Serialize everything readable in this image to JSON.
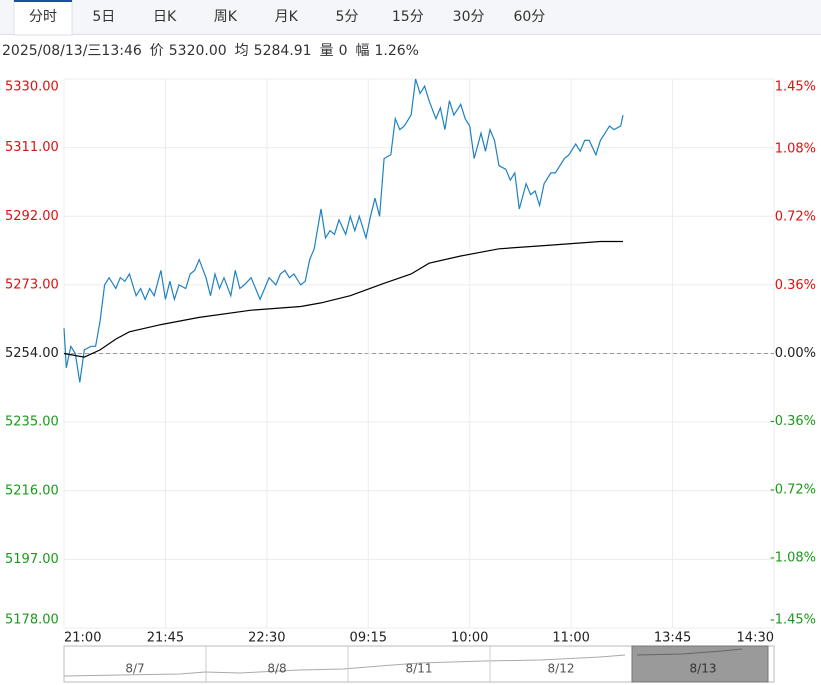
{
  "tabs": [
    "分时",
    "5日",
    "日K",
    "周K",
    "月K",
    "5分",
    "15分",
    "30分",
    "60分"
  ],
  "active_tab": 0,
  "info": {
    "time": "2025/08/13/三13:46",
    "items": [
      {
        "label": "价",
        "value": "5320.00"
      },
      {
        "label": "均",
        "value": "5284.91"
      },
      {
        "label": "量",
        "value": "0"
      },
      {
        "label": "幅",
        "value": "1.26%"
      }
    ]
  },
  "chart_data": {
    "type": "line",
    "xlim": [
      0,
      315
    ],
    "xticks": [
      {
        "value": 0,
        "label": "21:00"
      },
      {
        "value": 45,
        "label": "21:45"
      },
      {
        "value": 90,
        "label": "22:30"
      },
      {
        "value": 135,
        "label": "09:15"
      },
      {
        "value": 180,
        "label": "10:00"
      },
      {
        "value": 225,
        "label": "11:00"
      },
      {
        "value": 270,
        "label": "13:45"
      },
      {
        "value": 315,
        "label": "14:30"
      }
    ],
    "ylim": [
      5178,
      5330
    ],
    "yticks": [
      {
        "value": 5330,
        "label": "5330.00"
      },
      {
        "value": 5311,
        "label": "5311.00"
      },
      {
        "value": 5292,
        "label": "5292.00"
      },
      {
        "value": 5273,
        "label": "5273.00"
      },
      {
        "value": 5254,
        "label": "5254.00"
      },
      {
        "value": 5235,
        "label": "5235.00"
      },
      {
        "value": 5216,
        "label": "5216.00"
      },
      {
        "value": 5197,
        "label": "5197.00"
      },
      {
        "value": 5178,
        "label": "5178.00"
      }
    ],
    "y2lim": [
      -1.45,
      1.45
    ],
    "y2ticks": [
      {
        "value": 1.45,
        "label": "1.45%"
      },
      {
        "value": 1.08,
        "label": "1.08%"
      },
      {
        "value": 0.72,
        "label": "0.72%"
      },
      {
        "value": 0.36,
        "label": "0.36%"
      },
      {
        "value": 0,
        "label": "0.00%"
      },
      {
        "value": -0.36,
        "label": "-0.36%"
      },
      {
        "value": -0.72,
        "label": "-0.72%"
      },
      {
        "value": -1.08,
        "label": "-1.08%"
      },
      {
        "value": -1.45,
        "label": "-1.45%"
      }
    ],
    "up_color": "#e01010",
    "down_color": "#1a9a1a",
    "flat_color": "#222222",
    "grid": true,
    "series": [
      {
        "color": "#1f82c0",
        "x": [
          0,
          1,
          3,
          5,
          7,
          9,
          12,
          14,
          16,
          18,
          20,
          23,
          25,
          27,
          29,
          32,
          34,
          36,
          38,
          40,
          43,
          45,
          47,
          49,
          51,
          54,
          56,
          58,
          60,
          63,
          65,
          67,
          69,
          71,
          74,
          76,
          78,
          80,
          83,
          85,
          87,
          89,
          91,
          94,
          96,
          98,
          100,
          102,
          105,
          107,
          109,
          111,
          114,
          116,
          118,
          120,
          122,
          125,
          127,
          129,
          131,
          134,
          136,
          138,
          140,
          142,
          145,
          147,
          149,
          151,
          154,
          156,
          158,
          160,
          162,
          165,
          167,
          169,
          171,
          173,
          176,
          178,
          180,
          182,
          185,
          187,
          189,
          191,
          193,
          196,
          198,
          200,
          202,
          205,
          207,
          209,
          211,
          213,
          216,
          218,
          220,
          222,
          224,
          227,
          229,
          231,
          233,
          236,
          238,
          240,
          242,
          244,
          247,
          248
        ],
        "values": [
          5261,
          5250,
          5256,
          5254,
          5246,
          5255,
          5256,
          5256,
          5263,
          5273,
          5275,
          5272,
          5275,
          5274,
          5276,
          5270,
          5272,
          5269,
          5272,
          5270,
          5277,
          5269,
          5274,
          5269,
          5273,
          5272,
          5276,
          5277,
          5280,
          5275,
          5270,
          5276,
          5272,
          5275,
          5270,
          5277,
          5272,
          5273,
          5275,
          5272,
          5269,
          5272,
          5275,
          5273,
          5276,
          5277,
          5275,
          5276,
          5273,
          5274,
          5280,
          5283,
          5294,
          5286,
          5288,
          5287,
          5291,
          5287,
          5292,
          5288,
          5292,
          5286,
          5292,
          5297,
          5292,
          5308,
          5309,
          5319,
          5316,
          5317,
          5320,
          5330,
          5326,
          5328,
          5324,
          5319,
          5322,
          5316,
          5324,
          5320,
          5323,
          5319,
          5317,
          5308,
          5315,
          5310,
          5316,
          5313,
          5306,
          5305,
          5302,
          5304,
          5294,
          5301,
          5298,
          5299,
          5295,
          5301,
          5304,
          5304,
          5306,
          5308,
          5309,
          5312,
          5310,
          5313,
          5313,
          5309,
          5313,
          5315,
          5317,
          5316,
          5317,
          5320
        ]
      },
      {
        "color": "#000000",
        "x": [
          0,
          9,
          16,
          23,
          29,
          43,
          60,
          83,
          105,
          114,
          127,
          140,
          154,
          162,
          176,
          193,
          216,
          238,
          248
        ],
        "values": [
          5254,
          5253,
          5255,
          5258,
          5260,
          5262,
          5264,
          5266,
          5267,
          5268,
          5270,
          5273,
          5276,
          5279,
          5281,
          5283,
          5284,
          5285,
          5285
        ]
      }
    ]
  },
  "navigator": {
    "dates": [
      "8/7",
      "8/8",
      "8/11",
      "8/12",
      "8/13"
    ],
    "selected": 4
  }
}
